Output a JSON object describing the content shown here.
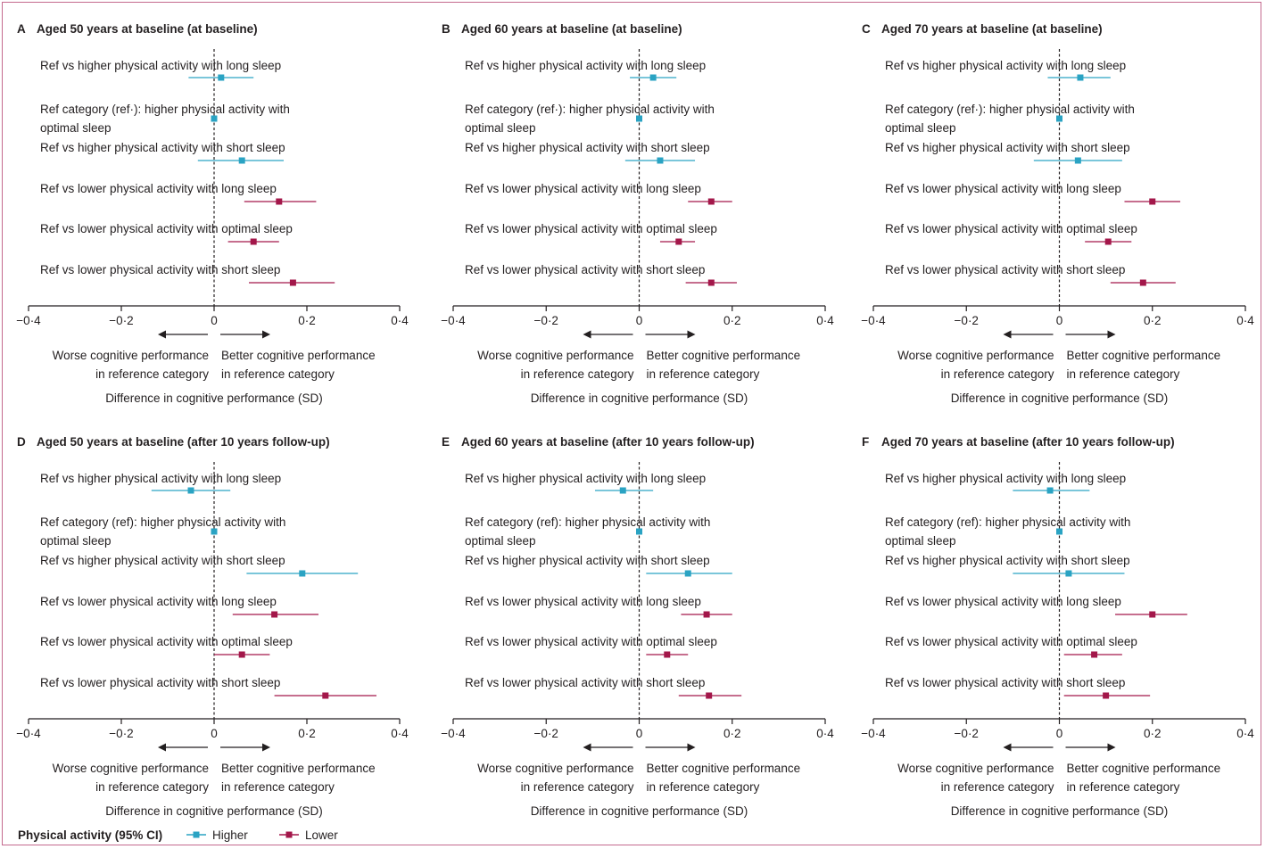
{
  "colors": {
    "higher": "#2aa3c3",
    "lower": "#a3174a",
    "axis": "#231f20",
    "frame": "#c46a8e"
  },
  "axis": {
    "ticks": [
      -0.4,
      -0.2,
      0,
      0.2,
      0.4
    ],
    "tick_labels": [
      "−0·4",
      "−0·2",
      "0",
      "0·2",
      "0·4"
    ],
    "xlabel": "Difference in cognitive performance (SD)",
    "left_note": [
      "Worse cognitive performance",
      "in reference category"
    ],
    "right_note": [
      "Better cognitive performance",
      "in reference category"
    ]
  },
  "legend": {
    "title": "Physical activity (95% CI)",
    "items": [
      {
        "label": "Higher",
        "series": "higher"
      },
      {
        "label": "Lower",
        "series": "lower"
      }
    ]
  },
  "chart_data": [
    {
      "type": "forest",
      "letter": "A",
      "title": "Aged 50 years at baseline (at baseline)",
      "xlim": [
        -0.4,
        0.4
      ],
      "rows": [
        {
          "label": [
            "Ref vs higher physical activity with long sleep"
          ],
          "series": "higher",
          "estimate": 0.015,
          "ci": [
            -0.055,
            0.085
          ]
        },
        {
          "label": [
            "Ref category (ref·): higher physical activity with",
            "optimal sleep"
          ],
          "series": "higher",
          "estimate": 0,
          "ci": [
            0,
            0
          ]
        },
        {
          "label": [
            "Ref vs higher physical activity with short sleep"
          ],
          "series": "higher",
          "estimate": 0.06,
          "ci": [
            -0.035,
            0.15
          ]
        },
        {
          "label": [
            "Ref vs lower physical activity with long sleep"
          ],
          "series": "lower",
          "estimate": 0.14,
          "ci": [
            0.065,
            0.22
          ]
        },
        {
          "label": [
            "Ref vs lower physical activity with optimal sleep"
          ],
          "series": "lower",
          "estimate": 0.085,
          "ci": [
            0.03,
            0.14
          ]
        },
        {
          "label": [
            "Ref vs lower physical activity with short sleep"
          ],
          "series": "lower",
          "estimate": 0.17,
          "ci": [
            0.075,
            0.26
          ]
        }
      ]
    },
    {
      "type": "forest",
      "letter": "B",
      "title": "Aged 60 years at baseline (at baseline)",
      "xlim": [
        -0.4,
        0.4
      ],
      "rows": [
        {
          "label": [
            "Ref vs higher physical activity with long sleep"
          ],
          "series": "higher",
          "estimate": 0.03,
          "ci": [
            -0.02,
            0.08
          ]
        },
        {
          "label": [
            "Ref category (ref·): higher physical activity with",
            "optimal sleep"
          ],
          "series": "higher",
          "estimate": 0,
          "ci": [
            0,
            0
          ]
        },
        {
          "label": [
            "Ref vs higher physical activity with short sleep"
          ],
          "series": "higher",
          "estimate": 0.045,
          "ci": [
            -0.03,
            0.12
          ]
        },
        {
          "label": [
            "Ref vs lower physical activity with long sleep"
          ],
          "series": "lower",
          "estimate": 0.155,
          "ci": [
            0.105,
            0.2
          ]
        },
        {
          "label": [
            "Ref vs lower physical activity with optimal sleep"
          ],
          "series": "lower",
          "estimate": 0.085,
          "ci": [
            0.045,
            0.12
          ]
        },
        {
          "label": [
            "Ref vs lower physical activity with short sleep"
          ],
          "series": "lower",
          "estimate": 0.155,
          "ci": [
            0.1,
            0.21
          ]
        }
      ]
    },
    {
      "type": "forest",
      "letter": "C",
      "title": "Aged 70 years at baseline (at baseline)",
      "xlim": [
        -0.4,
        0.4
      ],
      "rows": [
        {
          "label": [
            "Ref vs higher physical activity with long sleep"
          ],
          "series": "higher",
          "estimate": 0.045,
          "ci": [
            -0.025,
            0.11
          ]
        },
        {
          "label": [
            "Ref category (ref·): higher physical activity with",
            "optimal sleep"
          ],
          "series": "higher",
          "estimate": 0,
          "ci": [
            0,
            0
          ]
        },
        {
          "label": [
            "Ref vs higher physical activity with short sleep"
          ],
          "series": "higher",
          "estimate": 0.04,
          "ci": [
            -0.055,
            0.135
          ]
        },
        {
          "label": [
            "Ref vs lower physical activity with long sleep"
          ],
          "series": "lower",
          "estimate": 0.2,
          "ci": [
            0.14,
            0.26
          ]
        },
        {
          "label": [
            "Ref vs lower physical activity with optimal sleep"
          ],
          "series": "lower",
          "estimate": 0.105,
          "ci": [
            0.055,
            0.155
          ]
        },
        {
          "label": [
            "Ref vs lower physical activity with short sleep"
          ],
          "series": "lower",
          "estimate": 0.18,
          "ci": [
            0.11,
            0.25
          ]
        }
      ]
    },
    {
      "type": "forest",
      "letter": "D",
      "title": "Aged 50 years at baseline (after 10 years follow-up)",
      "xlim": [
        -0.4,
        0.4
      ],
      "rows": [
        {
          "label": [
            "Ref vs higher physical activity with long sleep"
          ],
          "series": "higher",
          "estimate": -0.05,
          "ci": [
            -0.135,
            0.035
          ]
        },
        {
          "label": [
            "Ref category (ref): higher physical activity with",
            "optimal sleep"
          ],
          "series": "higher",
          "estimate": 0,
          "ci": [
            0,
            0
          ]
        },
        {
          "label": [
            "Ref vs higher physical activity with short sleep"
          ],
          "series": "higher",
          "estimate": 0.19,
          "ci": [
            0.07,
            0.31
          ]
        },
        {
          "label": [
            "Ref vs lower physical activity with long sleep"
          ],
          "series": "lower",
          "estimate": 0.13,
          "ci": [
            0.04,
            0.225
          ]
        },
        {
          "label": [
            "Ref vs lower physical activity with optimal sleep"
          ],
          "series": "lower",
          "estimate": 0.06,
          "ci": [
            0.0,
            0.12
          ]
        },
        {
          "label": [
            "Ref vs lower physical activity with short sleep"
          ],
          "series": "lower",
          "estimate": 0.24,
          "ci": [
            0.13,
            0.35
          ]
        }
      ]
    },
    {
      "type": "forest",
      "letter": "E",
      "title": "Aged 60 years at baseline (after 10 years follow-up)",
      "xlim": [
        -0.4,
        0.4
      ],
      "rows": [
        {
          "label": [
            "Ref vs higher physical activity with long sleep"
          ],
          "series": "higher",
          "estimate": -0.035,
          "ci": [
            -0.095,
            0.03
          ]
        },
        {
          "label": [
            "Ref category (ref): higher physical activity with",
            "optimal sleep"
          ],
          "series": "higher",
          "estimate": 0,
          "ci": [
            0,
            0
          ]
        },
        {
          "label": [
            "Ref vs higher physical activity with short sleep"
          ],
          "series": "higher",
          "estimate": 0.105,
          "ci": [
            0.015,
            0.2
          ]
        },
        {
          "label": [
            "Ref vs lower physical activity with long sleep"
          ],
          "series": "lower",
          "estimate": 0.145,
          "ci": [
            0.09,
            0.2
          ]
        },
        {
          "label": [
            "Ref vs lower physical activity with optimal sleep"
          ],
          "series": "lower",
          "estimate": 0.06,
          "ci": [
            0.015,
            0.105
          ]
        },
        {
          "label": [
            "Ref vs lower physical activity with short sleep"
          ],
          "series": "lower",
          "estimate": 0.15,
          "ci": [
            0.085,
            0.22
          ]
        }
      ]
    },
    {
      "type": "forest",
      "letter": "F",
      "title": "Aged 70 years at baseline (after 10 years follow-up)",
      "xlim": [
        -0.4,
        0.4
      ],
      "rows": [
        {
          "label": [
            "Ref vs higher physical activity with long sleep"
          ],
          "series": "higher",
          "estimate": -0.02,
          "ci": [
            -0.1,
            0.065
          ]
        },
        {
          "label": [
            "Ref category (ref): higher physical activity with",
            "optimal sleep"
          ],
          "series": "higher",
          "estimate": 0,
          "ci": [
            0,
            0
          ]
        },
        {
          "label": [
            "Ref vs higher physical activity with short sleep"
          ],
          "series": "higher",
          "estimate": 0.02,
          "ci": [
            -0.1,
            0.14
          ]
        },
        {
          "label": [
            "Ref vs lower physical activity with long sleep"
          ],
          "series": "lower",
          "estimate": 0.2,
          "ci": [
            0.12,
            0.275
          ]
        },
        {
          "label": [
            "Ref vs lower physical activity with optimal sleep"
          ],
          "series": "lower",
          "estimate": 0.075,
          "ci": [
            0.01,
            0.135
          ]
        },
        {
          "label": [
            "Ref vs lower physical activity with short sleep"
          ],
          "series": "lower",
          "estimate": 0.1,
          "ci": [
            0.01,
            0.195
          ]
        }
      ]
    }
  ]
}
